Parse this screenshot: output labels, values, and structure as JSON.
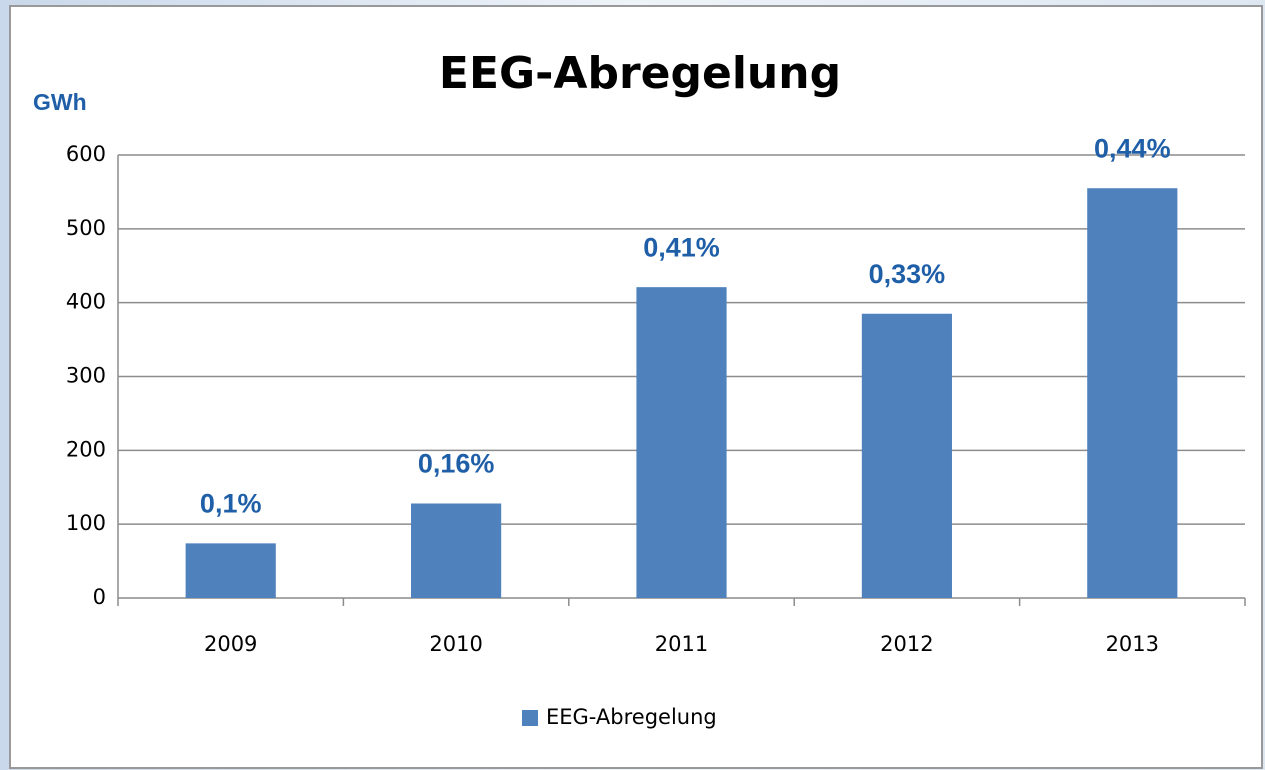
{
  "chart_data": {
    "type": "bar",
    "title": "EEG-Abregelung",
    "y_label": "GWh",
    "categories": [
      "2009",
      "2010",
      "2011",
      "2012",
      "2013"
    ],
    "series": [
      {
        "name": "EEG-Abregelung",
        "color": "#4f81bd",
        "values": [
          74,
          128,
          421,
          385,
          555
        ]
      }
    ],
    "annotations": [
      "0,1%",
      "0,16%",
      "0,41%",
      "0,33%",
      "0,44%"
    ],
    "ylim": [
      0,
      600
    ],
    "yticks": [
      0,
      100,
      200,
      300,
      400,
      500,
      600
    ],
    "grid": true,
    "legend": "bottom"
  }
}
